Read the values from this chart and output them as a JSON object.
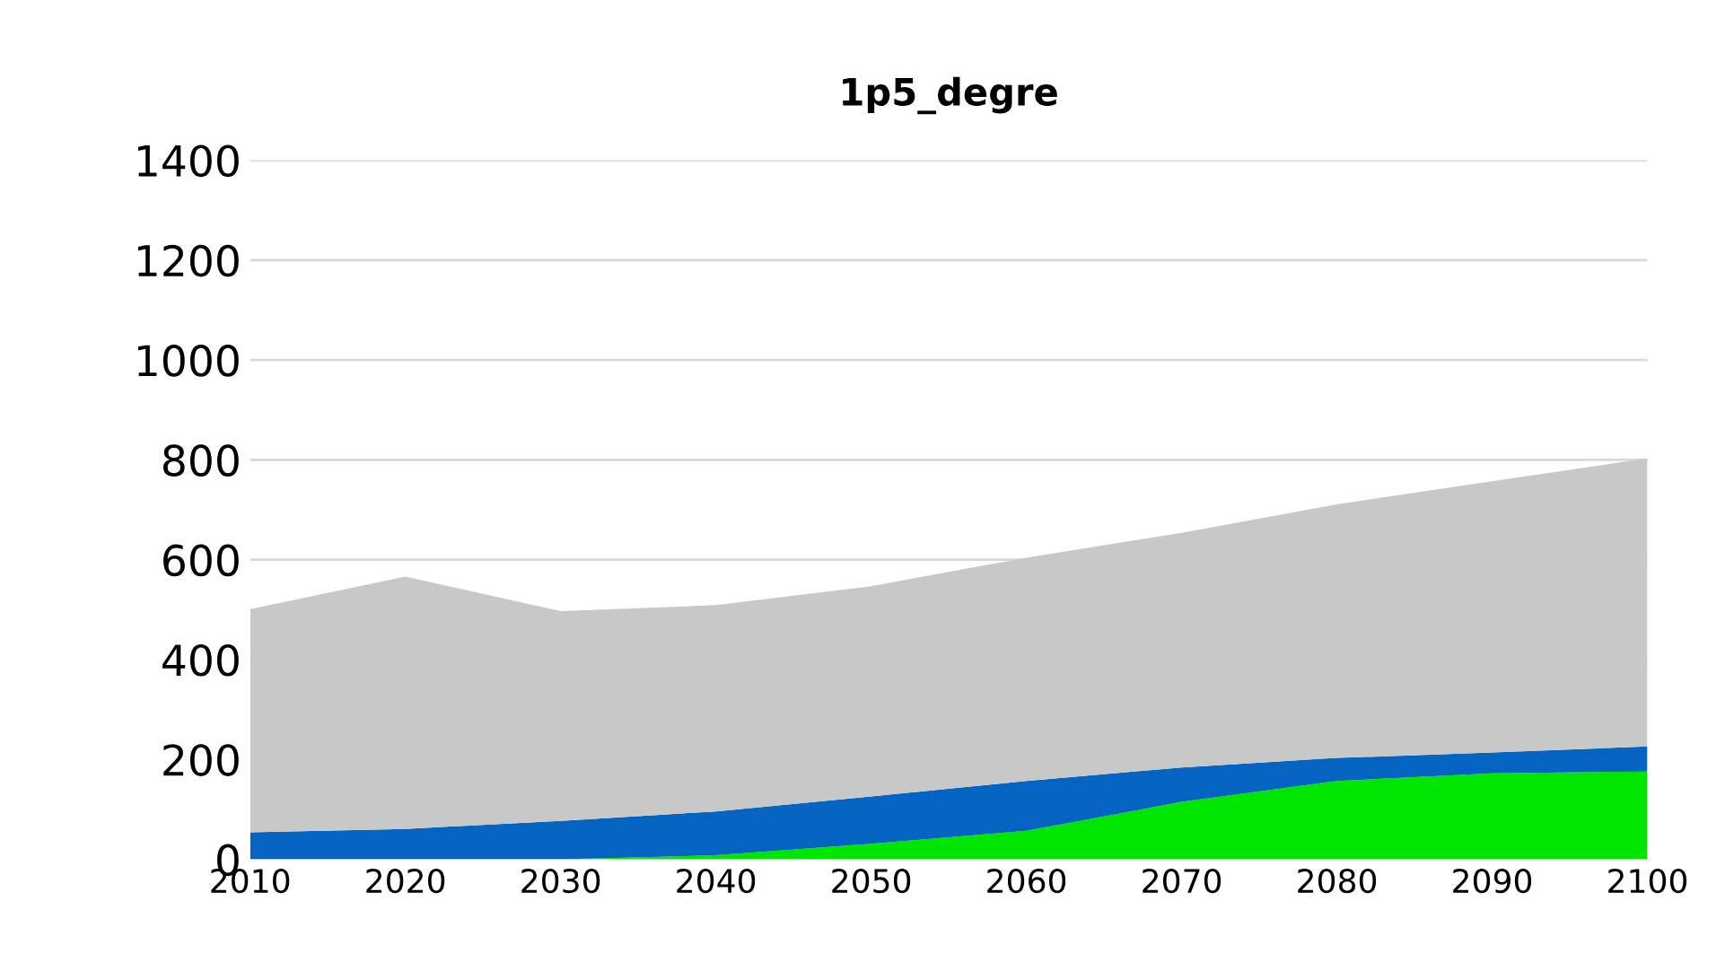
{
  "chart_data": {
    "type": "area",
    "title": "1p5_degre",
    "stacked": true,
    "x": [
      2010,
      2020,
      2030,
      2040,
      2050,
      2060,
      2070,
      2080,
      2090,
      2100
    ],
    "series": [
      {
        "color": "#00e600",
        "values": [
          0,
          0,
          0,
          8,
          31,
          57,
          115,
          157,
          172,
          176
        ]
      },
      {
        "color": "#0563c1",
        "values": [
          54,
          61,
          77,
          88,
          95,
          100,
          69,
          46,
          42,
          50
        ]
      },
      {
        "color": "#c8c8c8",
        "values": [
          447,
          505,
          420,
          413,
          421,
          447,
          470,
          508,
          543,
          577
        ]
      }
    ],
    "xlim": [
      2010,
      2100
    ],
    "xticks": [
      2010,
      2020,
      2030,
      2040,
      2050,
      2060,
      2070,
      2080,
      2090,
      2100
    ],
    "ylim": [
      0,
      1400
    ],
    "yticks": [
      0,
      200,
      400,
      600,
      800,
      1000,
      1200,
      1400
    ],
    "grid": "y"
  }
}
